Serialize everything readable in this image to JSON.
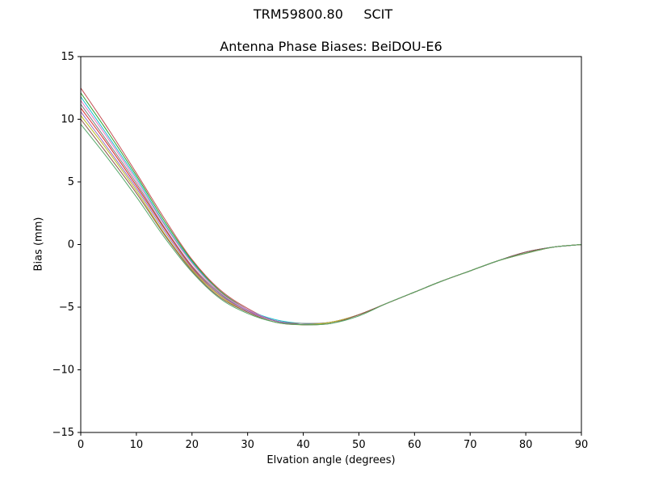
{
  "chart_data": {
    "type": "line",
    "suptitle": "TRM59800.80     SCIT",
    "title": "Antenna Phase Biases: BeiDOU-E6",
    "xlabel": "Elvation angle (degrees)",
    "ylabel": "Bias (mm)",
    "xlim": [
      0,
      90
    ],
    "ylim": [
      -15,
      15
    ],
    "xticks": [
      0,
      10,
      20,
      30,
      40,
      50,
      60,
      70,
      80,
      90
    ],
    "yticks": [
      -15,
      -10,
      -5,
      0,
      5,
      10,
      15
    ],
    "grid": false,
    "legend": null,
    "x": [
      0,
      5,
      10,
      15,
      20,
      25,
      30,
      35,
      40,
      45,
      50,
      55,
      60,
      65,
      70,
      75,
      80,
      85,
      90
    ],
    "series": [
      {
        "name": "curve-1",
        "color": "#c44e52",
        "values": [
          12.5,
          9.2,
          5.7,
          2.1,
          -1.2,
          -3.6,
          -5.1,
          -6.1,
          -6.3,
          -6.2,
          -5.6,
          -4.7,
          -3.8,
          -2.9,
          -2.1,
          -1.3,
          -0.6,
          -0.2,
          0.0
        ]
      },
      {
        "name": "curve-2",
        "color": "#2ca02c",
        "values": [
          12.1,
          8.9,
          5.5,
          1.9,
          -1.3,
          -3.7,
          -5.2,
          -6.1,
          -6.4,
          -6.2,
          -5.6,
          -4.7,
          -3.8,
          -2.9,
          -2.1,
          -1.3,
          -0.7,
          -0.2,
          0.0
        ]
      },
      {
        "name": "curve-3",
        "color": "#17becf",
        "values": [
          11.8,
          8.6,
          5.3,
          1.7,
          -1.4,
          -3.8,
          -5.2,
          -6.0,
          -6.3,
          -6.2,
          -5.6,
          -4.7,
          -3.8,
          -2.9,
          -2.1,
          -1.3,
          -0.6,
          -0.2,
          0.0
        ]
      },
      {
        "name": "curve-4",
        "color": "#e377c2",
        "values": [
          11.5,
          8.4,
          5.1,
          1.6,
          -1.5,
          -3.8,
          -5.2,
          -6.1,
          -6.4,
          -6.2,
          -5.6,
          -4.7,
          -3.8,
          -2.9,
          -2.1,
          -1.3,
          -0.7,
          -0.2,
          0.0
        ]
      },
      {
        "name": "curve-5",
        "color": "#7f7f7f",
        "values": [
          11.2,
          8.1,
          4.9,
          1.4,
          -1.7,
          -3.9,
          -5.3,
          -6.1,
          -6.3,
          -6.2,
          -5.6,
          -4.7,
          -3.8,
          -2.9,
          -2.1,
          -1.3,
          -0.6,
          -0.2,
          0.0
        ]
      },
      {
        "name": "curve-6",
        "color": "#d62728",
        "values": [
          10.9,
          7.9,
          4.7,
          1.3,
          -1.8,
          -4.0,
          -5.3,
          -6.1,
          -6.4,
          -6.2,
          -5.6,
          -4.7,
          -3.8,
          -2.9,
          -2.1,
          -1.3,
          -0.7,
          -0.2,
          0.0
        ]
      },
      {
        "name": "curve-7",
        "color": "#9467bd",
        "values": [
          10.6,
          7.6,
          4.5,
          1.1,
          -1.9,
          -4.0,
          -5.3,
          -6.1,
          -6.4,
          -6.2,
          -5.6,
          -4.7,
          -3.8,
          -2.9,
          -2.1,
          -1.3,
          -0.6,
          -0.2,
          0.0
        ]
      },
      {
        "name": "curve-8",
        "color": "#bcbd22",
        "values": [
          10.3,
          7.4,
          4.3,
          0.9,
          -2.0,
          -4.1,
          -5.4,
          -6.2,
          -6.4,
          -6.2,
          -5.6,
          -4.7,
          -3.8,
          -2.9,
          -2.1,
          -1.3,
          -0.7,
          -0.2,
          0.0
        ]
      },
      {
        "name": "curve-9",
        "color": "#8c564b",
        "values": [
          10.0,
          7.1,
          4.1,
          0.8,
          -2.1,
          -4.2,
          -5.4,
          -6.2,
          -6.4,
          -6.3,
          -5.6,
          -4.7,
          -3.8,
          -2.9,
          -2.1,
          -1.3,
          -0.6,
          -0.2,
          0.0
        ]
      },
      {
        "name": "curve-10",
        "color": "#55a868",
        "values": [
          9.6,
          6.8,
          3.8,
          0.6,
          -2.2,
          -4.3,
          -5.5,
          -6.2,
          -6.4,
          -6.3,
          -5.7,
          -4.7,
          -3.8,
          -2.9,
          -2.1,
          -1.3,
          -0.7,
          -0.2,
          0.0
        ]
      }
    ]
  }
}
